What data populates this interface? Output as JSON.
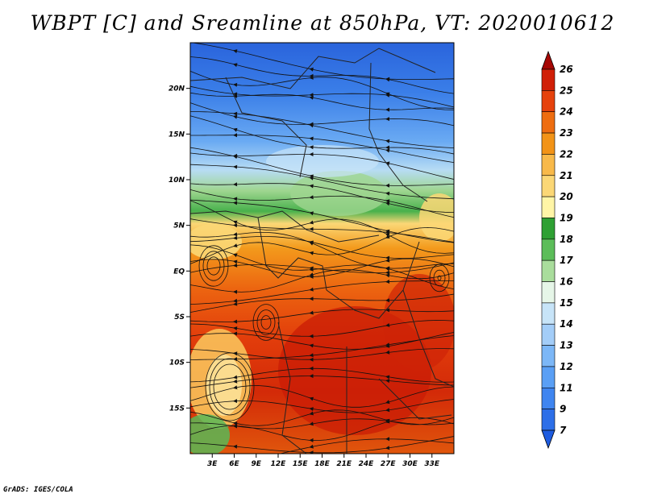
{
  "title": "WBPT [C] and Sreamline at 850hPa, VT: 2020010612",
  "credit": "GrADS: IGES/COLA",
  "map": {
    "lon_range": [
      0,
      36
    ],
    "lat_range": [
      -20,
      25
    ],
    "lat_ticks": [
      {
        "value": 20,
        "label": "20N"
      },
      {
        "value": 15,
        "label": "15N"
      },
      {
        "value": 10,
        "label": "10N"
      },
      {
        "value": 5,
        "label": "5N"
      },
      {
        "value": 0,
        "label": "EQ"
      },
      {
        "value": -5,
        "label": "5S"
      },
      {
        "value": -10,
        "label": "10S"
      },
      {
        "value": -15,
        "label": "15S"
      }
    ],
    "lon_ticks": [
      {
        "value": 3,
        "label": "3E"
      },
      {
        "value": 6,
        "label": "6E"
      },
      {
        "value": 9,
        "label": "9E"
      },
      {
        "value": 12,
        "label": "12E"
      },
      {
        "value": 15,
        "label": "15E"
      },
      {
        "value": 18,
        "label": "18E"
      },
      {
        "value": 21,
        "label": "21E"
      },
      {
        "value": 24,
        "label": "24E"
      },
      {
        "value": 27,
        "label": "27E"
      },
      {
        "value": 30,
        "label": "30E"
      },
      {
        "value": 33,
        "label": "33E"
      }
    ]
  },
  "colorbar": {
    "levels": [
      "7",
      "9",
      "11",
      "12",
      "13",
      "14",
      "15",
      "16",
      "17",
      "18",
      "19",
      "20",
      "21",
      "22",
      "23",
      "24",
      "25",
      "26"
    ],
    "colors": [
      "#1e5ce0",
      "#2d6fe8",
      "#3f85f0",
      "#5a9ff5",
      "#7cb7f7",
      "#a3cdf8",
      "#c7e4f8",
      "#e6f6e8",
      "#a9dd9c",
      "#5cbd59",
      "#2ea033",
      "#fff5a6",
      "#fbd776",
      "#f8b94a",
      "#f29317",
      "#ee6d10",
      "#e6420c",
      "#d01f07",
      "#a60704"
    ]
  }
}
